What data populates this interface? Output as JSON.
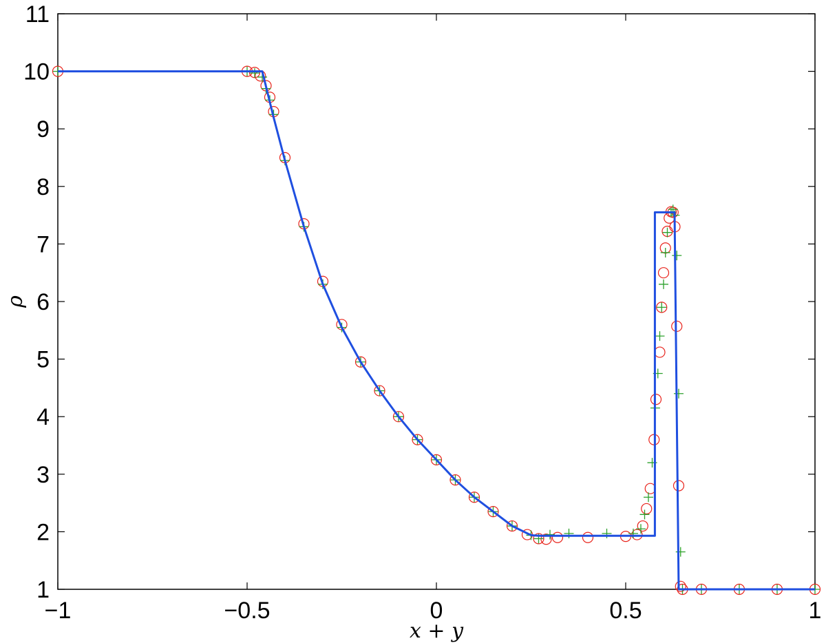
{
  "chart_data": {
    "type": "line",
    "xlabel": "x + y",
    "ylabel": "ρ",
    "xlim": [
      -1,
      1
    ],
    "ylim": [
      1,
      11
    ],
    "xticks": [
      "−1",
      "−0.5",
      "0",
      "0.5",
      "1"
    ],
    "xtick_values": [
      -1,
      -0.5,
      0,
      0.5,
      1
    ],
    "yticks": [
      "1",
      "2",
      "3",
      "4",
      "5",
      "6",
      "7",
      "8",
      "9",
      "10",
      "11"
    ],
    "ytick_values": [
      1,
      2,
      3,
      4,
      5,
      6,
      7,
      8,
      9,
      10,
      11
    ],
    "grid": false,
    "legend": null,
    "series": [
      {
        "style": "line",
        "color": "#1f4fe0",
        "x": [
          -1,
          -0.46,
          -0.43,
          -0.4,
          -0.35,
          -0.3,
          -0.25,
          -0.2,
          -0.15,
          -0.1,
          -0.05,
          0.0,
          0.05,
          0.1,
          0.15,
          0.2,
          0.25,
          0.27,
          0.577,
          0.577,
          0.629,
          0.64,
          1
        ],
        "y": [
          10,
          10,
          9.2,
          8.45,
          7.3,
          6.3,
          5.55,
          4.95,
          4.45,
          4.0,
          3.6,
          3.25,
          2.9,
          2.6,
          2.35,
          2.1,
          1.94,
          1.93,
          1.93,
          7.55,
          7.55,
          1.0,
          1.0
        ]
      },
      {
        "style": "markers",
        "marker": "circle",
        "color": "#e8231b",
        "x": [
          -1,
          -0.5,
          -0.48,
          -0.465,
          -0.45,
          -0.44,
          -0.43,
          -0.4,
          -0.35,
          -0.3,
          -0.25,
          -0.2,
          -0.15,
          -0.1,
          -0.05,
          0.0,
          0.05,
          0.1,
          0.15,
          0.2,
          0.24,
          0.27,
          0.29,
          0.32,
          0.4,
          0.5,
          0.53,
          0.545,
          0.555,
          0.565,
          0.575,
          0.58,
          0.59,
          0.595,
          0.6,
          0.605,
          0.61,
          0.615,
          0.62,
          0.625,
          0.63,
          0.635,
          0.64,
          0.645,
          0.65,
          0.7,
          0.8,
          0.9,
          1.0
        ],
        "y": [
          10,
          10,
          9.98,
          9.92,
          9.75,
          9.55,
          9.3,
          8.5,
          7.35,
          6.35,
          5.6,
          4.95,
          4.45,
          4.0,
          3.6,
          3.25,
          2.9,
          2.6,
          2.35,
          2.1,
          1.95,
          1.88,
          1.87,
          1.9,
          1.9,
          1.92,
          1.95,
          2.1,
          2.4,
          2.75,
          3.6,
          4.3,
          5.12,
          5.9,
          6.5,
          6.93,
          7.22,
          7.45,
          7.56,
          7.55,
          7.3,
          5.57,
          2.8,
          1.05,
          1.0,
          1.0,
          1.0,
          1.0,
          1.0
        ]
      },
      {
        "style": "markers",
        "marker": "plus",
        "color": "#2ca02c",
        "x": [
          -1,
          -0.5,
          -0.48,
          -0.46,
          -0.45,
          -0.44,
          -0.43,
          -0.4,
          -0.35,
          -0.3,
          -0.25,
          -0.2,
          -0.15,
          -0.1,
          -0.05,
          0.0,
          0.05,
          0.1,
          0.15,
          0.2,
          0.25,
          0.27,
          0.3,
          0.35,
          0.45,
          0.52,
          0.54,
          0.55,
          0.56,
          0.57,
          0.578,
          0.585,
          0.59,
          0.595,
          0.6,
          0.605,
          0.61,
          0.62,
          0.625,
          0.63,
          0.635,
          0.64,
          0.645,
          0.65,
          0.7,
          0.8,
          0.9,
          1.0
        ],
        "y": [
          10,
          10,
          9.97,
          9.9,
          9.7,
          9.5,
          9.25,
          8.45,
          7.3,
          6.3,
          5.55,
          4.95,
          4.45,
          4.0,
          3.6,
          3.25,
          2.9,
          2.6,
          2.35,
          2.1,
          1.94,
          1.88,
          1.95,
          1.97,
          1.97,
          1.97,
          2.05,
          2.3,
          2.6,
          3.2,
          4.15,
          4.75,
          5.4,
          5.9,
          6.3,
          6.85,
          7.2,
          7.55,
          7.6,
          7.5,
          6.8,
          4.4,
          1.65,
          1.0,
          1.0,
          1.0,
          1.0,
          1.0
        ]
      }
    ]
  }
}
